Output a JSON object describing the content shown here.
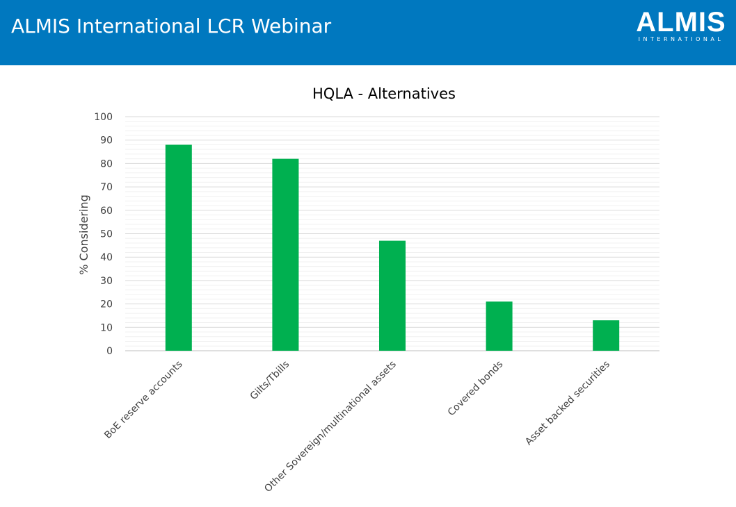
{
  "header": {
    "title": "ALMIS International LCR Webinar",
    "logo_word": "ALMIS",
    "logo_sub": "INTERNATIONAL",
    "background_color": "#0078bf"
  },
  "chart_data": {
    "type": "bar",
    "title": "HQLA - Alternatives",
    "ylabel": "% Considering",
    "xlabel": "",
    "categories": [
      "BoE reserve accounts",
      "Gilts/Tbills",
      "Other Sovereign/multinational assets",
      "Covered bonds",
      "Asset backed securities"
    ],
    "values": [
      88,
      82,
      47,
      21,
      13
    ],
    "ylim": [
      0,
      100
    ],
    "yticks": [
      "0",
      "10",
      "20",
      "30",
      "40",
      "50",
      "60",
      "70",
      "80",
      "90",
      "100"
    ],
    "grid": true,
    "legend": "none",
    "bar_color": "#00b050"
  }
}
